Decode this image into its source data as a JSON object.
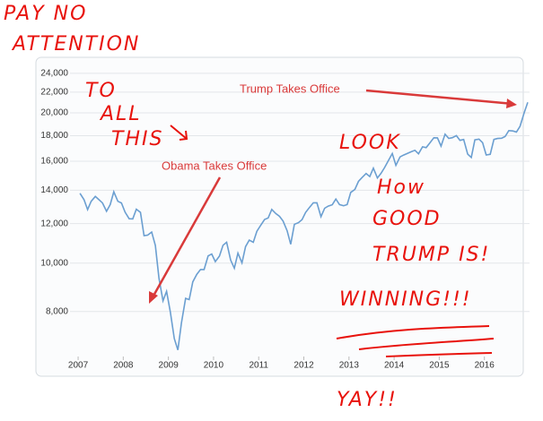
{
  "chart_data": {
    "type": "line",
    "log": true,
    "grid": true,
    "color": "#6b9fd1",
    "xlim": [
      2006.82,
      2017.0
    ],
    "xticks": [
      2007,
      2008,
      2009,
      2010,
      2011,
      2012,
      2013,
      2014,
      2015,
      2016
    ],
    "ylim": [
      6500,
      25000
    ],
    "yticks": [
      {
        "value": 8000,
        "label": "8,000"
      },
      {
        "value": 10000,
        "label": "10,000"
      },
      {
        "value": 12000,
        "label": "12,000"
      },
      {
        "value": 14000,
        "label": "14,000"
      },
      {
        "value": 16000,
        "label": "16,000"
      },
      {
        "value": 18000,
        "label": "18,000"
      },
      {
        "value": 20000,
        "label": "20,000"
      },
      {
        "value": 22000,
        "label": "22,000"
      },
      {
        "value": 24000,
        "label": "24,000"
      }
    ],
    "annotations": [
      "Trump Takes Office",
      "Obama Takes Office"
    ],
    "handwritten": [
      "PAY NO",
      "ATTENTION",
      "TO",
      "ALL",
      "THIS",
      "LOOK",
      "How",
      "GOOD",
      "TRUMP IS!",
      "WINNING!!!",
      "YAY!!"
    ],
    "x": [
      2007.04,
      2007.13,
      2007.21,
      2007.29,
      2007.38,
      2007.46,
      2007.54,
      2007.63,
      2007.71,
      2007.79,
      2007.88,
      2007.96,
      2008.04,
      2008.13,
      2008.21,
      2008.29,
      2008.38,
      2008.46,
      2008.54,
      2008.63,
      2008.71,
      2008.79,
      2008.88,
      2008.96,
      2009.04,
      2009.13,
      2009.21,
      2009.29,
      2009.38,
      2009.46,
      2009.54,
      2009.63,
      2009.71,
      2009.79,
      2009.88,
      2009.96,
      2010.04,
      2010.13,
      2010.21,
      2010.29,
      2010.38,
      2010.46,
      2010.54,
      2010.63,
      2010.71,
      2010.79,
      2010.88,
      2010.96,
      2011.04,
      2011.13,
      2011.21,
      2011.29,
      2011.38,
      2011.46,
      2011.54,
      2011.63,
      2011.71,
      2011.79,
      2011.88,
      2011.96,
      2012.04,
      2012.13,
      2012.21,
      2012.29,
      2012.38,
      2012.46,
      2012.54,
      2012.63,
      2012.71,
      2012.79,
      2012.88,
      2012.96,
      2013.04,
      2013.13,
      2013.21,
      2013.29,
      2013.38,
      2013.46,
      2013.54,
      2013.63,
      2013.71,
      2013.79,
      2013.88,
      2013.96,
      2014.04,
      2014.13,
      2014.21,
      2014.29,
      2014.38,
      2014.46,
      2014.54,
      2014.63,
      2014.71,
      2014.79,
      2014.88,
      2014.96,
      2015.04,
      2015.13,
      2015.21,
      2015.29,
      2015.38,
      2015.46,
      2015.54,
      2015.63,
      2015.71,
      2015.79,
      2015.88,
      2015.96,
      2016.04,
      2016.13,
      2016.21,
      2016.29,
      2016.38,
      2016.46,
      2016.54,
      2016.63,
      2016.71,
      2016.79,
      2016.88,
      2016.96
    ],
    "values": [
      13800,
      13400,
      12800,
      13300,
      13600,
      13400,
      13200,
      12700,
      13100,
      13900,
      13300,
      13200,
      12650,
      12270,
      12260,
      12820,
      12640,
      11350,
      11380,
      11540,
      10850,
      9330,
      8400,
      8780,
      8000,
      7060,
      6700,
      7600,
      8500,
      8450,
      9170,
      9500,
      9710,
      9710,
      10340,
      10430,
      10070,
      10330,
      10860,
      11010,
      10140,
      9770,
      10470,
      10010,
      10790,
      11120,
      11010,
      11580,
      11890,
      12230,
      12320,
      12810,
      12570,
      12410,
      12140,
      11610,
      10910,
      11960,
      12050,
      12220,
      12630,
      12950,
      13210,
      13210,
      12390,
      12880,
      13010,
      13090,
      13440,
      13100,
      13030,
      13100,
      13860,
      14050,
      14580,
      14840,
      15120,
      14910,
      15500,
      14810,
      15130,
      15550,
      16090,
      16580,
      15700,
      16320,
      16460,
      16580,
      16720,
      16830,
      16560,
      17100,
      17040,
      17390,
      17830,
      17820,
      17160,
      18130,
      17780,
      17840,
      18010,
      17620,
      17690,
      16530,
      16280,
      17660,
      17720,
      17430,
      16470,
      16520,
      17690,
      17770,
      17790,
      17930,
      18430,
      18400,
      18310,
      18800,
      20000,
      21000
    ]
  }
}
